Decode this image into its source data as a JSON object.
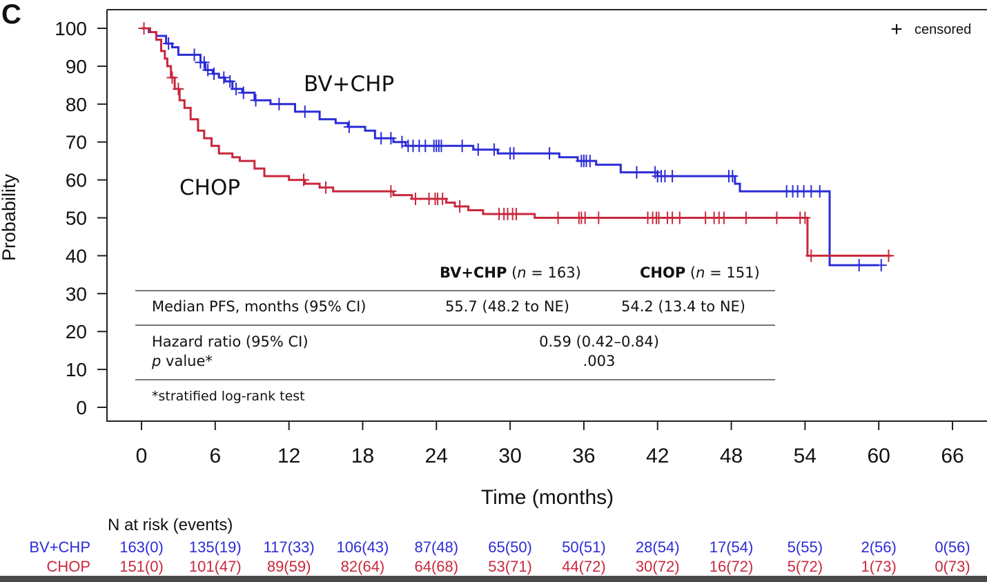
{
  "chart_data": {
    "type": "line",
    "subtype": "kaplan-meier",
    "panel_label": "C",
    "xlabel": "Time (months)",
    "ylabel": "Probability",
    "xlim": [
      0,
      66
    ],
    "ylim": [
      0,
      100
    ],
    "x_ticks": [
      0,
      6,
      12,
      18,
      24,
      30,
      36,
      42,
      48,
      54,
      60,
      66
    ],
    "y_ticks": [
      0,
      10,
      20,
      30,
      40,
      50,
      60,
      70,
      80,
      90,
      100
    ],
    "legend": {
      "symbol": "+",
      "label": "censored",
      "position": "top-right"
    },
    "series": [
      {
        "name": "BV+CHP",
        "color": "#2b2bd6",
        "steps": [
          [
            0,
            100
          ],
          [
            0.6,
            99
          ],
          [
            1.2,
            98
          ],
          [
            2,
            96
          ],
          [
            2.5,
            95
          ],
          [
            3,
            93
          ],
          [
            4.8,
            91
          ],
          [
            5.2,
            89
          ],
          [
            5.8,
            88
          ],
          [
            6.3,
            87
          ],
          [
            6.8,
            86
          ],
          [
            7.4,
            84
          ],
          [
            8.2,
            83
          ],
          [
            9.2,
            81
          ],
          [
            10.5,
            80
          ],
          [
            12.5,
            78
          ],
          [
            14.5,
            76
          ],
          [
            15.8,
            75
          ],
          [
            16.8,
            74
          ],
          [
            18.2,
            73
          ],
          [
            19,
            71
          ],
          [
            20.5,
            70
          ],
          [
            21.5,
            69
          ],
          [
            27,
            68
          ],
          [
            29,
            67
          ],
          [
            34,
            66
          ],
          [
            35.5,
            65
          ],
          [
            37,
            64
          ],
          [
            39,
            62
          ],
          [
            42,
            61
          ],
          [
            48.3,
            59
          ],
          [
            48.7,
            57
          ],
          [
            56,
            37.5
          ],
          [
            60,
            37.5
          ]
        ],
        "censor_times": [
          2.2,
          4.3,
          4.8,
          5.1,
          5.4,
          5.9,
          6.7,
          7.2,
          7.7,
          8.3,
          9.3,
          11.2,
          13.3,
          16.9,
          19.5,
          20.3,
          21.2,
          21.7,
          22.1,
          22.6,
          23.1,
          23.8,
          24.0,
          24.2,
          24.4,
          26.1,
          27.4,
          28.7,
          30.0,
          30.3,
          33.2,
          35.8,
          36.0,
          36.2,
          36.5,
          40.3,
          41.8,
          42.0,
          42.3,
          42.6,
          43.2,
          47.8,
          48.1,
          52.5,
          53.0,
          53.4,
          53.9,
          54.5,
          55.2,
          58.4,
          60.2
        ],
        "label_text": "BV+CHP",
        "at_risk": [
          "163(0)",
          "135(19)",
          "117(33)",
          "106(43)",
          "87(48)",
          "65(50)",
          "50(51)",
          "28(54)",
          "17(54)",
          "5(55)",
          "2(56)",
          "0(56)"
        ]
      },
      {
        "name": "CHOP",
        "color": "#c8283c",
        "steps": [
          [
            0,
            100
          ],
          [
            0.7,
            99
          ],
          [
            1.2,
            97
          ],
          [
            1.6,
            94
          ],
          [
            1.9,
            92
          ],
          [
            2.1,
            90
          ],
          [
            2.4,
            87
          ],
          [
            2.7,
            84
          ],
          [
            3.1,
            81
          ],
          [
            3.5,
            79
          ],
          [
            4.0,
            76
          ],
          [
            4.6,
            73
          ],
          [
            5.1,
            71
          ],
          [
            5.7,
            69
          ],
          [
            6.3,
            67
          ],
          [
            7.4,
            66
          ],
          [
            8.0,
            65
          ],
          [
            9.2,
            63
          ],
          [
            10.0,
            61
          ],
          [
            12.0,
            60
          ],
          [
            13.3,
            59
          ],
          [
            14.5,
            58
          ],
          [
            15.6,
            57
          ],
          [
            20.5,
            56
          ],
          [
            22.0,
            55
          ],
          [
            24.8,
            54
          ],
          [
            25.5,
            53
          ],
          [
            26.6,
            52
          ],
          [
            27.8,
            51
          ],
          [
            32,
            50
          ],
          [
            54.2,
            40
          ],
          [
            61,
            40
          ]
        ],
        "censor_times": [
          0.2,
          2.5,
          3.0,
          13.2,
          15.0,
          20.3,
          22.3,
          23.4,
          23.9,
          24.1,
          24.5,
          25.9,
          29.1,
          29.5,
          29.8,
          30.2,
          30.5,
          33.9,
          35.6,
          35.8,
          36.1,
          37.2,
          41.2,
          41.6,
          41.9,
          42.1,
          42.8,
          43.2,
          43.8,
          45.9,
          46.6,
          47.0,
          47.4,
          49.2,
          51.7,
          53.6,
          54.0,
          54.5,
          60.8
        ],
        "label_text": "CHOP",
        "at_risk": [
          "151(0)",
          "101(47)",
          "89(59)",
          "82(64)",
          "64(68)",
          "53(71)",
          "44(72)",
          "30(72)",
          "16(72)",
          "5(72)",
          "1(73)",
          "0(73)"
        ]
      }
    ],
    "inset_table": {
      "col1": {
        "bold": "BV+CHP",
        "open": " (",
        "italic": "n",
        "rest": " = 163)"
      },
      "col2": {
        "bold": "CHOP",
        "open": " (",
        "italic": "n",
        "rest": " = 151)"
      },
      "row1": {
        "label": "Median PFS, months (95% CI)",
        "v1": "55.7 (48.2 to NE)",
        "v2": "54.2 (13.4 to NE)"
      },
      "row2": {
        "label": "Hazard ratio (95% CI)",
        "value": "0.59 (0.42–0.84)"
      },
      "row3": {
        "label_italic": "p",
        "label_rest": " value*",
        "value": ".003"
      },
      "footnote": "*stratified log-rank test"
    },
    "at_risk_title": "N at risk (events)"
  }
}
